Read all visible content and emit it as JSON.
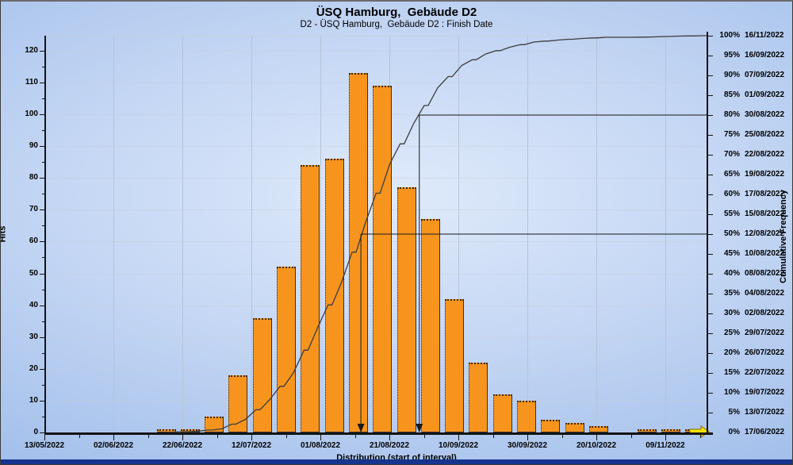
{
  "title": "ÜSQ Hamburg,  Gebäude D2",
  "subtitle": "D2 - ÜSQ Hamburg,  Gebäude D2 : Finish Date",
  "axes": {
    "left_label": "Hits",
    "right_label": "Cumulative Frequency",
    "x_label": "Distribution (start of interval)"
  },
  "chart_data": {
    "type": "bar",
    "subtype": "risk-histogram-with-cumulative-curve",
    "title": "ÜSQ Hamburg,  Gebäude D2",
    "subtitle": "D2 - ÜSQ Hamburg,  Gebäude D2 : Finish Date",
    "xlabel": "Distribution (start of interval)",
    "ylabel_left": "Hits",
    "ylabel_right": "Cumulative Frequency",
    "hits_axis": {
      "min": 0,
      "max": 125,
      "major_ticks": [
        0,
        10,
        20,
        30,
        40,
        50,
        60,
        70,
        80,
        90,
        100,
        110,
        120
      ],
      "minor_step": 5
    },
    "x_tick_labels": [
      "13/05/2022",
      "02/06/2022",
      "22/06/2022",
      "12/07/2022",
      "01/08/2022",
      "21/08/2022",
      "10/09/2022",
      "30/09/2022",
      "20/10/2022",
      "09/11/2022"
    ],
    "bars": {
      "values": [
        1,
        1,
        5,
        18,
        36,
        52,
        84,
        86,
        113,
        109,
        77,
        67,
        42,
        22,
        12,
        10,
        4,
        3,
        2,
        0,
        1,
        1,
        1
      ],
      "color": "#f7941e"
    },
    "cumulative_pct": [
      0.1,
      0.3,
      0.9,
      3.3,
      8.2,
      15.1,
      26.4,
      37.9,
      53.0,
      67.6,
      77.9,
      86.9,
      92.5,
      95.4,
      97.1,
      98.4,
      98.9,
      99.3,
      99.6,
      99.6,
      99.7,
      99.9,
      100
    ],
    "right_axis_ticks": [
      {
        "pct": "100%",
        "date": "16/11/2022"
      },
      {
        "pct": "95%",
        "date": "16/09/2022"
      },
      {
        "pct": "90%",
        "date": "07/09/2022"
      },
      {
        "pct": "85%",
        "date": "01/09/2022"
      },
      {
        "pct": "80%",
        "date": "30/08/2022"
      },
      {
        "pct": "75%",
        "date": "25/08/2022"
      },
      {
        "pct": "70%",
        "date": "22/08/2022"
      },
      {
        "pct": "65%",
        "date": "19/08/2022"
      },
      {
        "pct": "60%",
        "date": "17/08/2022"
      },
      {
        "pct": "55%",
        "date": "15/08/2022"
      },
      {
        "pct": "50%",
        "date": "12/08/2022"
      },
      {
        "pct": "45%",
        "date": "10/08/2022"
      },
      {
        "pct": "40%",
        "date": "08/08/2022"
      },
      {
        "pct": "35%",
        "date": "04/08/2022"
      },
      {
        "pct": "30%",
        "date": "02/08/2022"
      },
      {
        "pct": "25%",
        "date": "29/07/2022"
      },
      {
        "pct": "20%",
        "date": "26/07/2022"
      },
      {
        "pct": "15%",
        "date": "22/07/2022"
      },
      {
        "pct": "10%",
        "date": "19/07/2022"
      },
      {
        "pct": "5%",
        "date": "13/07/2022"
      },
      {
        "pct": "0%",
        "date": "17/06/2022"
      }
    ],
    "highlighted_percentiles": [
      {
        "pct": 50,
        "date": "12/08/2022"
      },
      {
        "pct": 80,
        "date": "30/08/2022"
      }
    ],
    "legend": "none",
    "grid": "on",
    "curve_color": "#3c3c3c",
    "annotation_color": "#1a1a1a",
    "marker_color": "#ffe400"
  }
}
